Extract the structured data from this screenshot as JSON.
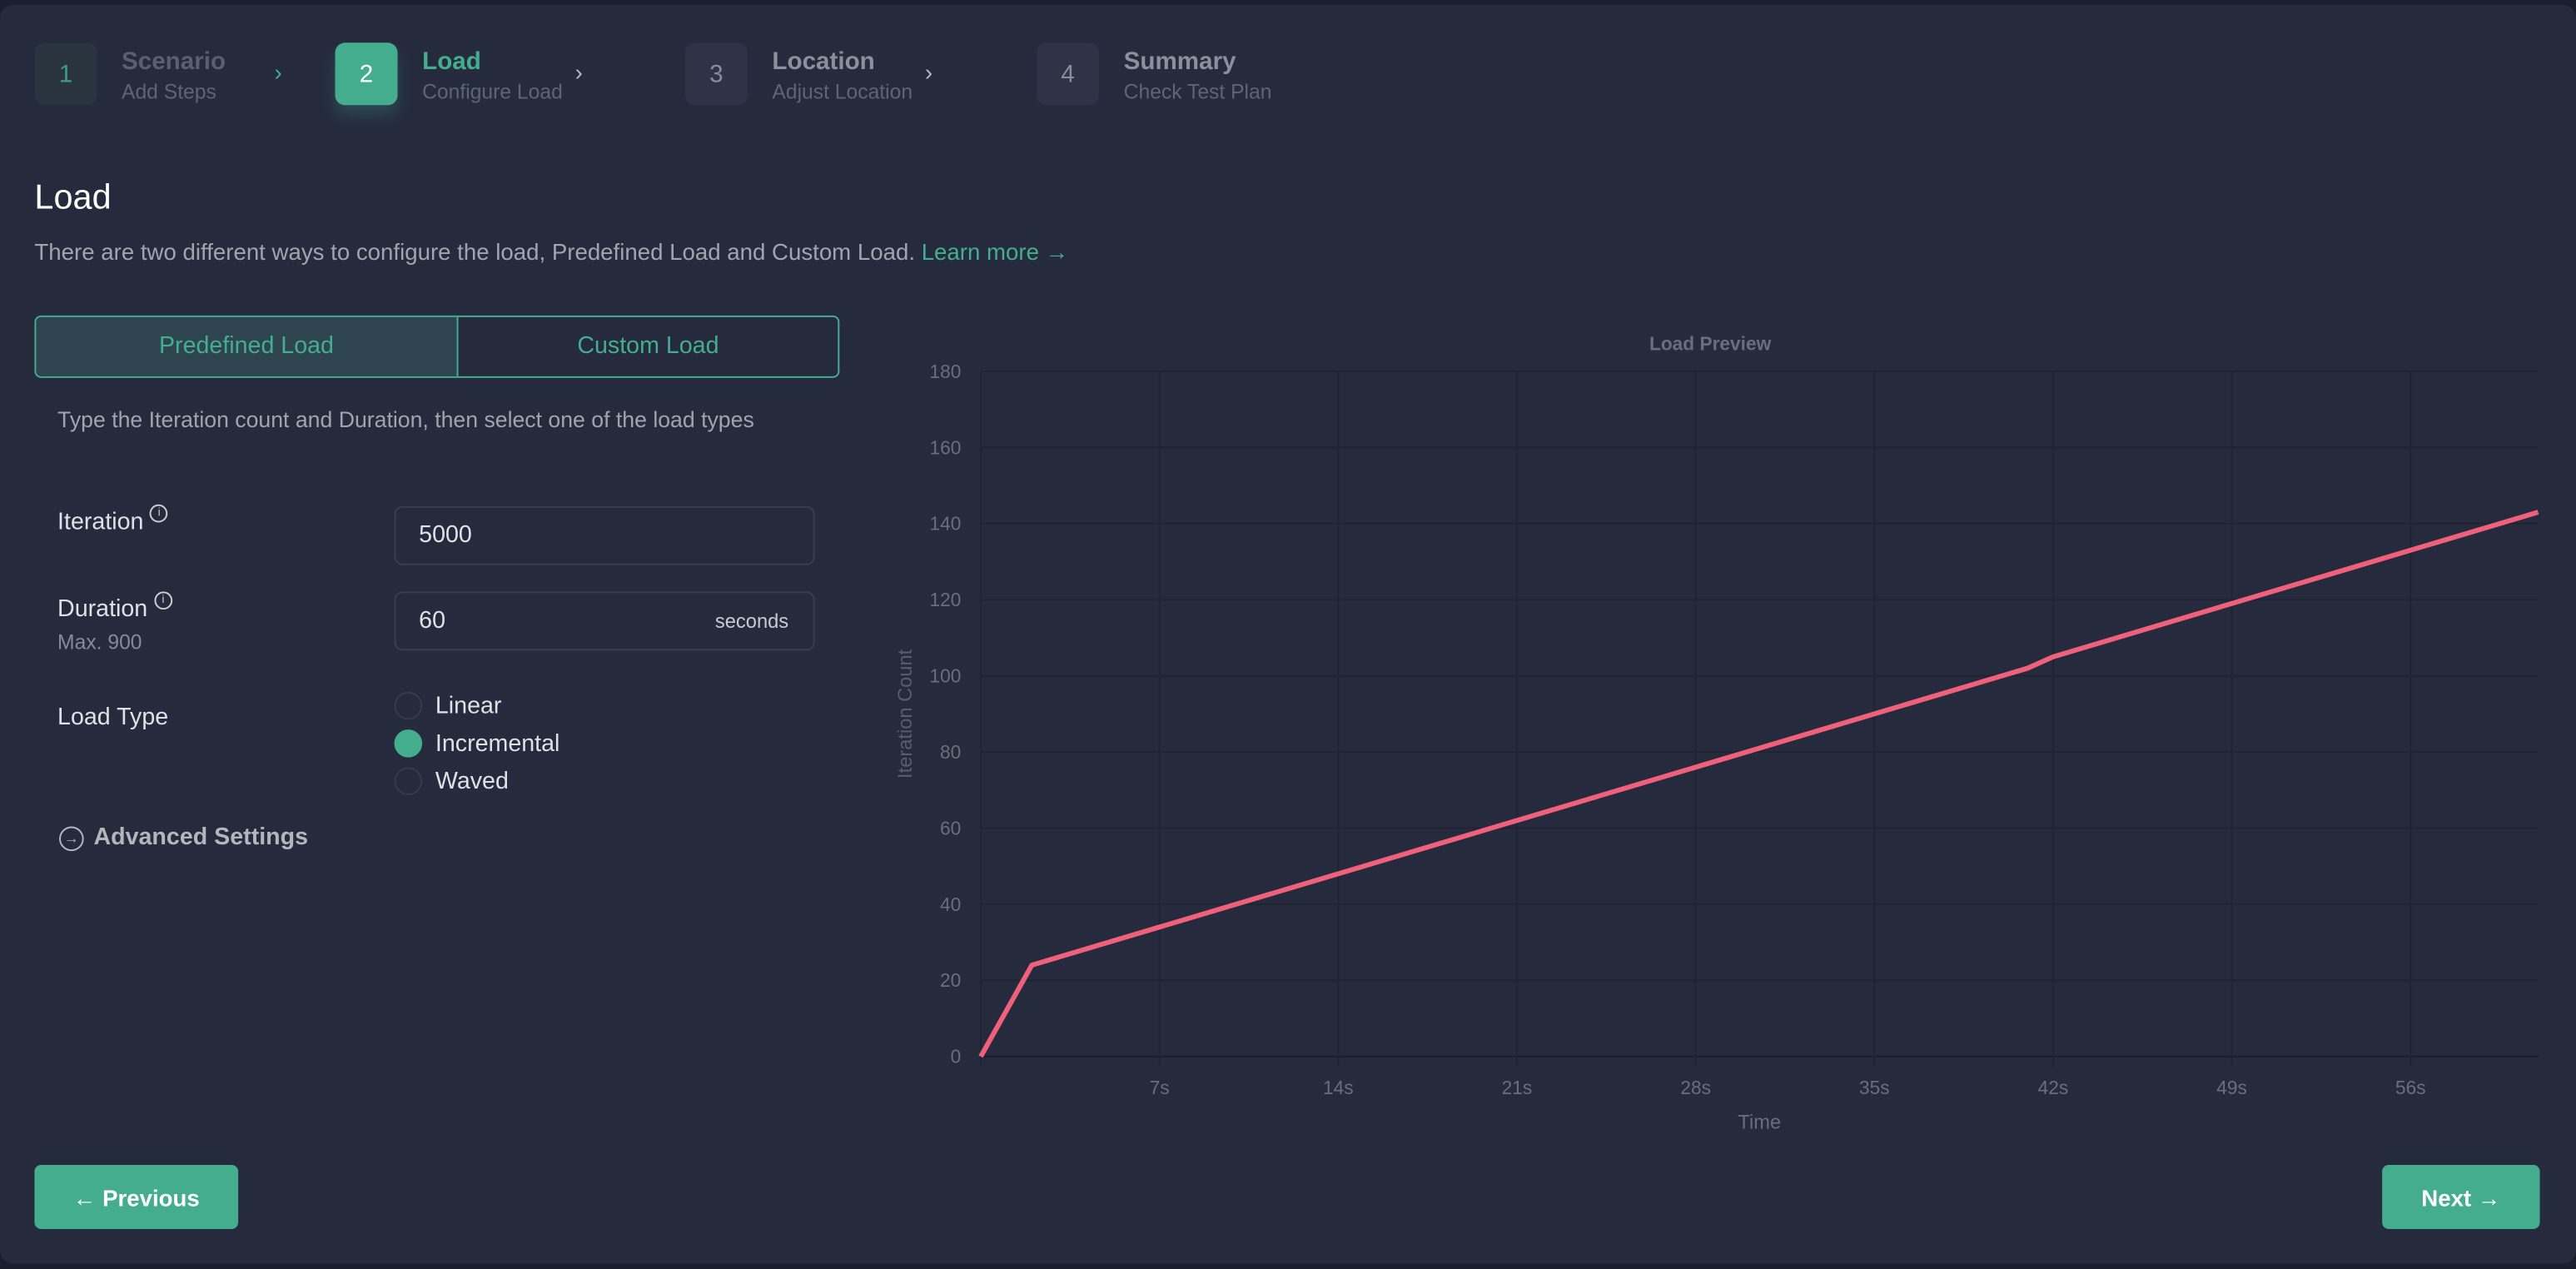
{
  "stepper": [
    {
      "number": "1",
      "title": "Scenario",
      "subtitle": "Add Steps",
      "state": "done"
    },
    {
      "number": "2",
      "title": "Load",
      "subtitle": "Configure Load",
      "state": "active"
    },
    {
      "number": "3",
      "title": "Location",
      "subtitle": "Adjust Location",
      "state": "pending"
    },
    {
      "number": "4",
      "title": "Summary",
      "subtitle": "Check Test Plan",
      "state": "pending"
    }
  ],
  "page": {
    "title": "Load",
    "description": "There are two different ways to configure the load, Predefined Load and Custom Load.",
    "learn_more": "Learn more →"
  },
  "tabs": [
    {
      "label": "Predefined Load",
      "active": true
    },
    {
      "label": "Custom Load",
      "active": false
    }
  ],
  "form": {
    "hint": "Type the Iteration count and Duration, then select one of the load types",
    "iteration": {
      "label": "Iteration",
      "value": "5000"
    },
    "duration": {
      "label": "Duration",
      "sublabel": "Max. 900",
      "value": "60",
      "unit": "seconds"
    },
    "load_type": {
      "label": "Load Type",
      "options": [
        "Linear",
        "Incremental",
        "Waved"
      ],
      "selected": "Incremental"
    },
    "advanced": "Advanced Settings"
  },
  "buttons": {
    "previous": "← Previous",
    "next": "Next →"
  },
  "colors": {
    "accent": "#44ad8e",
    "line": "#f0607a",
    "background": "#252a3d"
  },
  "chart_data": {
    "type": "line",
    "title": "Load Preview",
    "xlabel": "Time",
    "ylabel": "Iteration Count",
    "xlim": [
      0,
      61
    ],
    "ylim": [
      0,
      180
    ],
    "xticks": [
      7,
      14,
      21,
      28,
      35,
      42,
      49,
      56
    ],
    "xtick_labels": [
      "7s",
      "14s",
      "21s",
      "28s",
      "35s",
      "42s",
      "49s",
      "56s"
    ],
    "yticks": [
      0,
      20,
      40,
      60,
      80,
      100,
      120,
      140,
      160,
      180
    ],
    "grid": true,
    "series": [
      {
        "x": [
          0,
          2,
          41,
          42,
          61
        ],
        "y": [
          0,
          24,
          102,
          105,
          143
        ]
      }
    ]
  }
}
